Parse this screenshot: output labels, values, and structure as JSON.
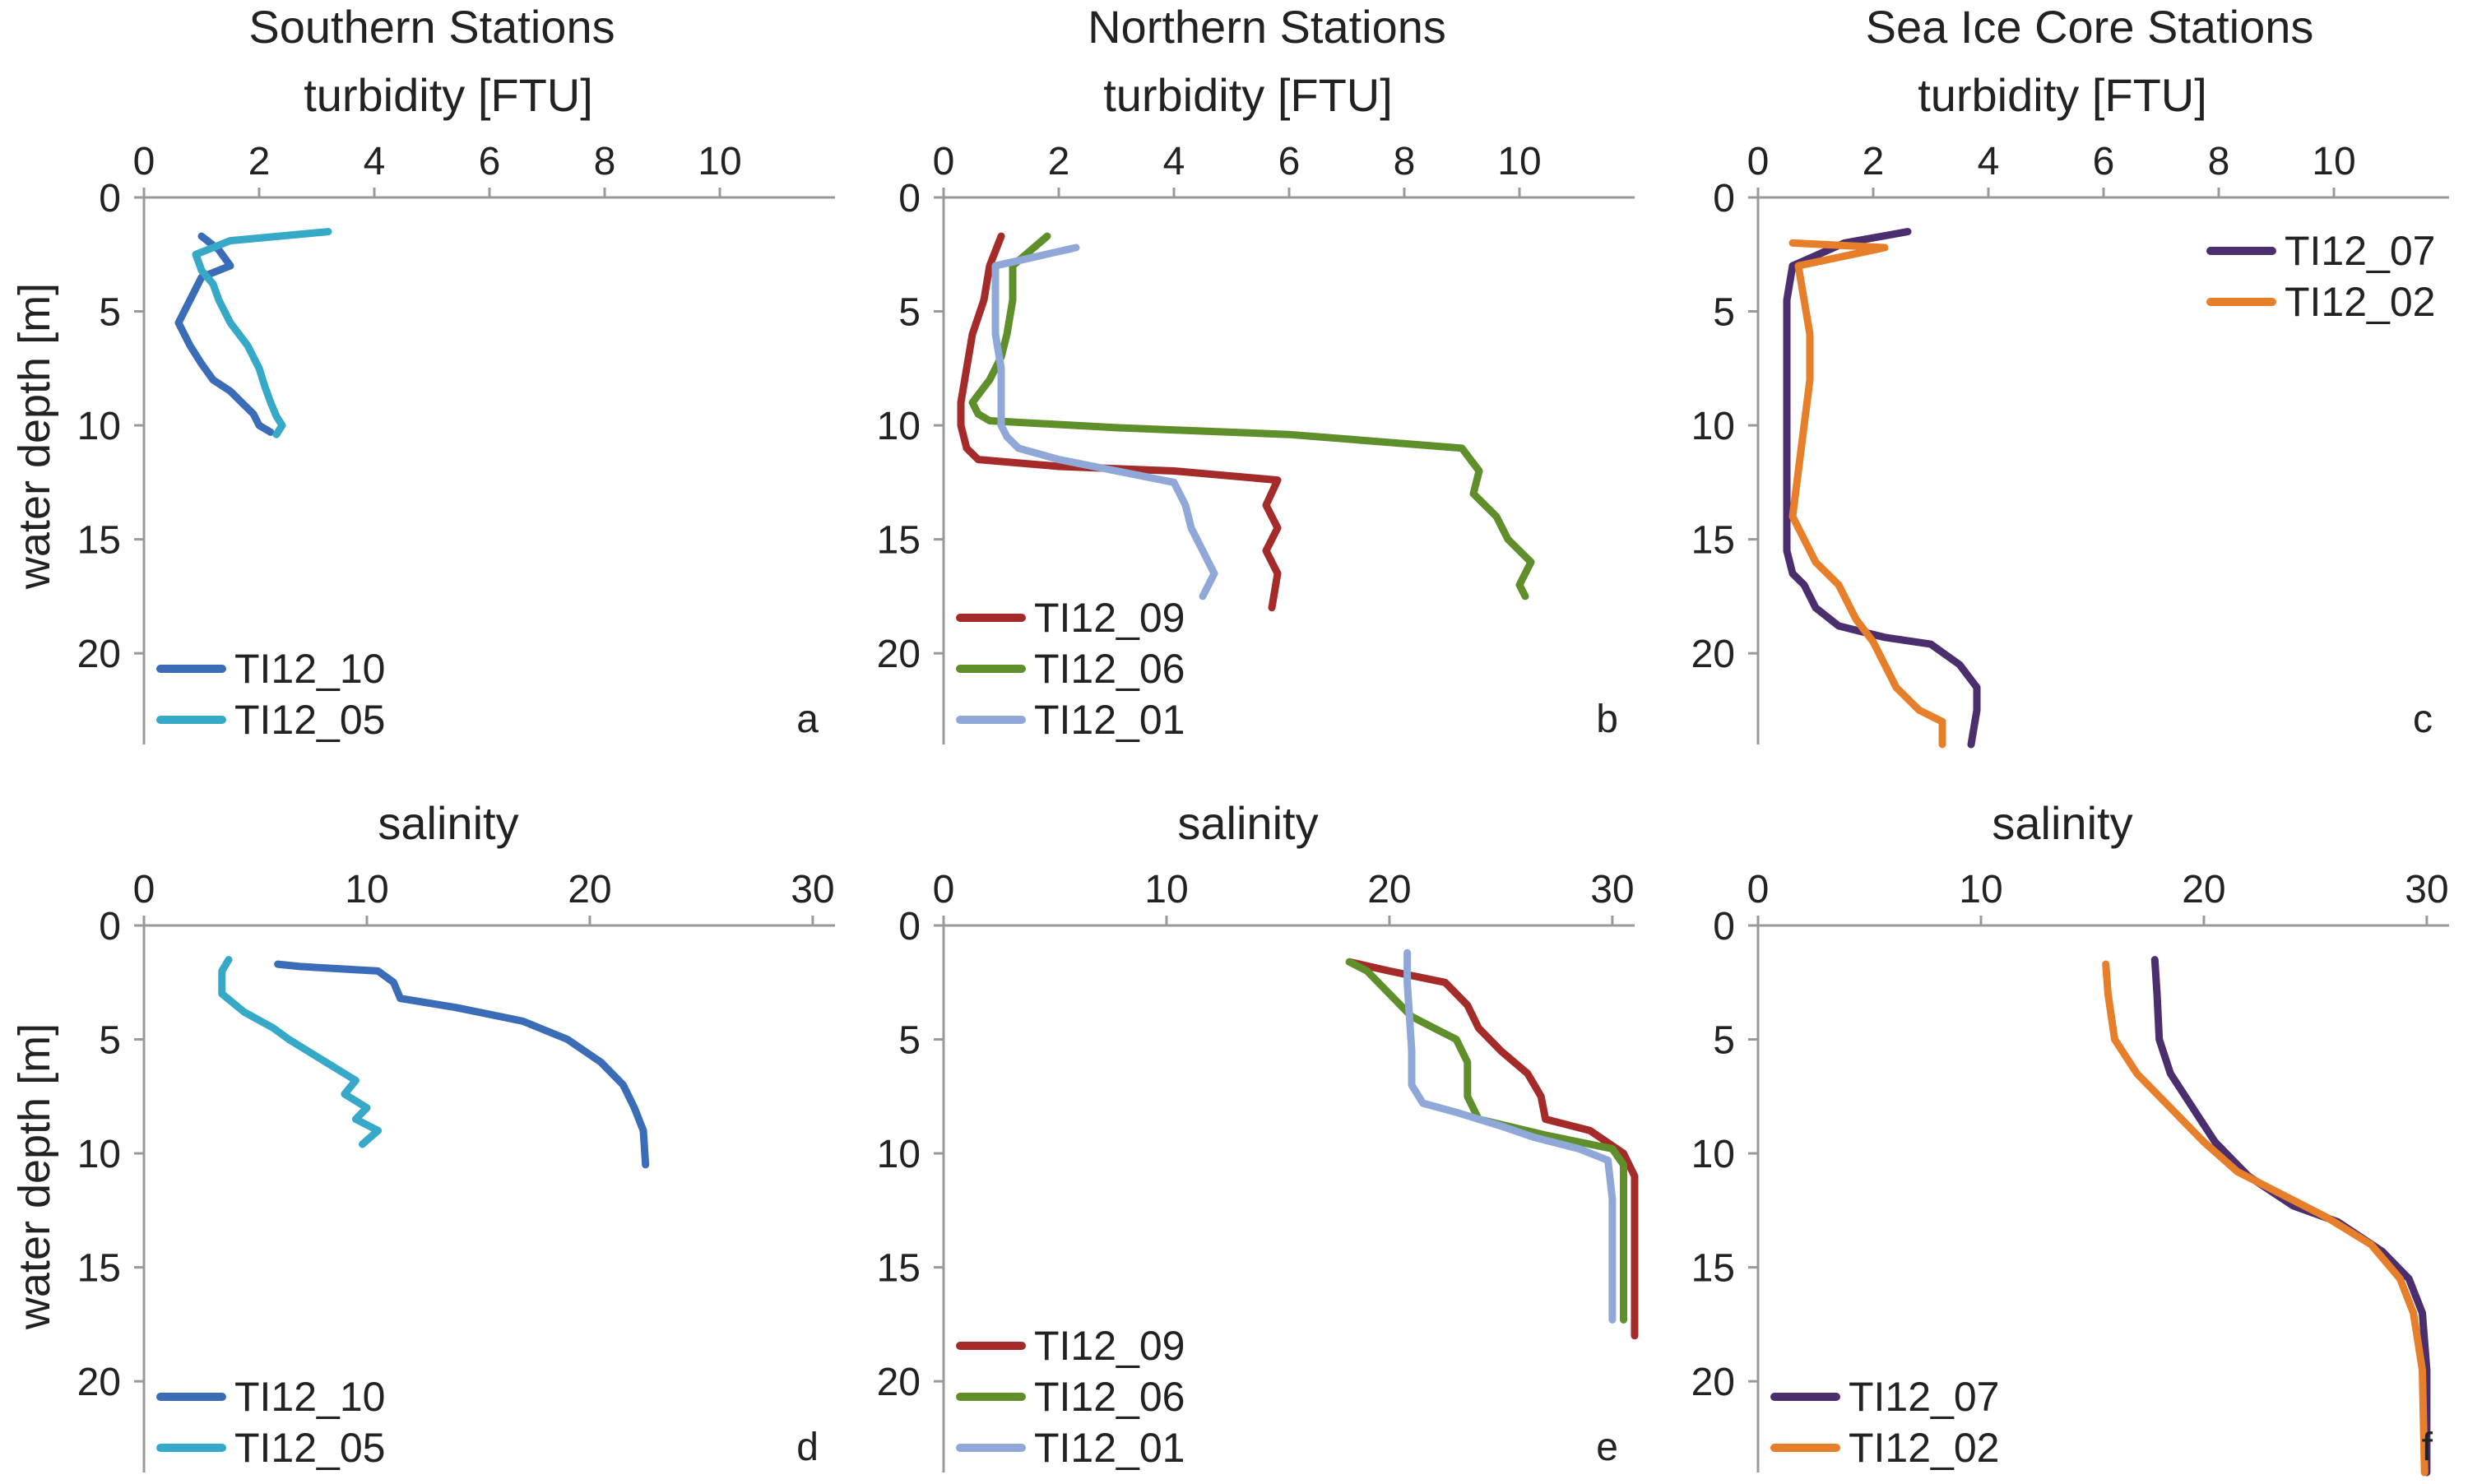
{
  "columns": [
    {
      "title": "Southern Stations"
    },
    {
      "title": "Northern Stations"
    },
    {
      "title": "Sea Ice Core Stations"
    }
  ],
  "colors": {
    "TI12_10": "#3b6cb8",
    "TI12_05": "#36a9c9",
    "TI12_09": "#a52a2a",
    "TI12_06": "#5f8f2a",
    "TI12_01": "#8fa8d8",
    "TI12_07": "#4b2e6e",
    "TI12_02": "#e77e2a"
  },
  "chart_data": [
    {
      "id": "a",
      "type": "line",
      "panel_label": "a",
      "xlabel": "turbidity [FTU]",
      "ylabel": "water depth [m]",
      "xlim": [
        0,
        12
      ],
      "ylim": [
        0,
        24
      ],
      "xticks": [
        0,
        2,
        4,
        6,
        8,
        10
      ],
      "yticks": [
        0,
        5,
        10,
        15,
        20
      ],
      "legend_position": "bottom-left",
      "series": [
        {
          "name": "TI12_10",
          "x": [
            1.0,
            1.3,
            1.5,
            1.0,
            0.8,
            0.6,
            0.8,
            1.0,
            1.2,
            1.5,
            1.7,
            1.9,
            2.0,
            2.2
          ],
          "y": [
            1.7,
            2.3,
            3.0,
            3.5,
            4.5,
            5.5,
            6.5,
            7.3,
            8.0,
            8.5,
            9.0,
            9.5,
            10.0,
            10.3
          ]
        },
        {
          "name": "TI12_05",
          "x": [
            3.2,
            1.5,
            0.9,
            1.0,
            1.2,
            1.3,
            1.5,
            1.8,
            2.0,
            2.1,
            2.2,
            2.3,
            2.4,
            2.3
          ],
          "y": [
            1.5,
            1.9,
            2.5,
            3.2,
            3.8,
            4.5,
            5.5,
            6.5,
            7.5,
            8.3,
            9.0,
            9.6,
            10.0,
            10.4
          ]
        }
      ]
    },
    {
      "id": "b",
      "type": "line",
      "panel_label": "b",
      "xlabel": "turbidity [FTU]",
      "ylabel": "",
      "xlim": [
        0,
        12
      ],
      "ylim": [
        0,
        24
      ],
      "xticks": [
        0,
        2,
        4,
        6,
        8,
        10
      ],
      "yticks": [
        0,
        5,
        10,
        15,
        20
      ],
      "legend_position": "bottom-left",
      "series": [
        {
          "name": "TI12_09",
          "x": [
            1.0,
            0.8,
            0.7,
            0.5,
            0.4,
            0.3,
            0.3,
            0.4,
            0.6,
            2.0,
            4.0,
            5.8,
            5.6,
            5.8,
            5.6,
            5.8,
            5.7
          ],
          "y": [
            1.7,
            3.0,
            4.5,
            6.0,
            7.5,
            9.0,
            10.0,
            11.0,
            11.5,
            11.8,
            12.0,
            12.4,
            13.5,
            14.5,
            15.5,
            16.5,
            18.0
          ]
        },
        {
          "name": "TI12_06",
          "x": [
            1.8,
            1.2,
            1.2,
            1.1,
            1.0,
            0.8,
            0.5,
            0.6,
            0.8,
            3.0,
            6.0,
            9.0,
            9.3,
            9.2,
            9.6,
            9.8,
            10.2,
            10.0,
            10.1
          ],
          "y": [
            1.7,
            3.0,
            4.5,
            6.0,
            7.0,
            8.0,
            9.0,
            9.5,
            9.8,
            10.1,
            10.4,
            11.0,
            12.0,
            13.0,
            14.0,
            15.0,
            16.0,
            17.0,
            17.5
          ]
        },
        {
          "name": "TI12_01",
          "x": [
            2.3,
            0.9,
            0.9,
            0.9,
            1.0,
            1.0,
            1.0,
            1.1,
            1.3,
            2.0,
            3.0,
            4.0,
            4.2,
            4.3,
            4.5,
            4.7,
            4.5
          ],
          "y": [
            2.2,
            3.0,
            4.5,
            6.0,
            7.5,
            9.0,
            10.0,
            10.5,
            11.0,
            11.5,
            12.0,
            12.5,
            13.5,
            14.5,
            15.5,
            16.5,
            17.5
          ]
        }
      ]
    },
    {
      "id": "c",
      "type": "line",
      "panel_label": "c",
      "xlabel": "turbidity [FTU]",
      "ylabel": "",
      "xlim": [
        0,
        12
      ],
      "ylim": [
        0,
        24
      ],
      "xticks": [
        0,
        2,
        4,
        6,
        8,
        10
      ],
      "yticks": [
        0,
        5,
        10,
        15,
        20
      ],
      "legend_position": "top-right",
      "series": [
        {
          "name": "TI12_07",
          "x": [
            2.6,
            1.5,
            0.6,
            0.5,
            0.5,
            0.5,
            0.5,
            0.5,
            0.5,
            0.5,
            0.6,
            0.8,
            1.0,
            1.4,
            2.2,
            3.0,
            3.5,
            3.8,
            3.8,
            3.7
          ],
          "y": [
            1.5,
            2.0,
            3.0,
            4.5,
            6.0,
            8.0,
            10.0,
            12.0,
            14.0,
            15.5,
            16.5,
            17.0,
            18.0,
            18.8,
            19.3,
            19.6,
            20.5,
            21.5,
            22.5,
            24.0
          ]
        },
        {
          "name": "TI12_02",
          "x": [
            0.6,
            2.2,
            0.7,
            0.8,
            0.9,
            0.9,
            0.8,
            0.7,
            0.6,
            0.8,
            1.0,
            1.4,
            1.7,
            2.0,
            2.2,
            2.4,
            2.8,
            3.2,
            3.2
          ],
          "y": [
            2.0,
            2.2,
            3.0,
            4.5,
            6.0,
            8.0,
            10.0,
            12.0,
            14.0,
            15.0,
            16.0,
            17.0,
            18.5,
            19.5,
            20.5,
            21.5,
            22.5,
            23.0,
            24.0
          ]
        }
      ]
    },
    {
      "id": "d",
      "type": "line",
      "panel_label": "d",
      "xlabel": "salinity",
      "ylabel": "water depth [m]",
      "xlim": [
        0,
        31
      ],
      "ylim": [
        0,
        24
      ],
      "xticks": [
        0,
        10,
        20,
        30
      ],
      "yticks": [
        0,
        5,
        10,
        15,
        20
      ],
      "legend_position": "bottom-left",
      "series": [
        {
          "name": "TI12_10",
          "x": [
            6.0,
            7.0,
            10.5,
            11.2,
            11.5,
            14.0,
            17.0,
            19.0,
            20.5,
            21.5,
            22.0,
            22.4,
            22.5
          ],
          "y": [
            1.7,
            1.8,
            2.0,
            2.5,
            3.2,
            3.6,
            4.2,
            5.0,
            6.0,
            7.0,
            8.0,
            9.0,
            10.5
          ]
        },
        {
          "name": "TI12_05",
          "x": [
            3.8,
            3.5,
            3.5,
            4.5,
            5.8,
            6.5,
            7.5,
            8.5,
            9.5,
            9.0,
            10.0,
            9.5,
            10.5,
            9.8
          ],
          "y": [
            1.5,
            2.0,
            3.0,
            3.8,
            4.5,
            5.0,
            5.6,
            6.2,
            6.8,
            7.4,
            8.0,
            8.5,
            9.0,
            9.6
          ]
        }
      ]
    },
    {
      "id": "e",
      "type": "line",
      "panel_label": "e",
      "xlabel": "salinity",
      "ylabel": "",
      "xlim": [
        0,
        31
      ],
      "ylim": [
        0,
        24
      ],
      "xticks": [
        0,
        10,
        20,
        30
      ],
      "yticks": [
        0,
        5,
        10,
        15,
        20
      ],
      "legend_position": "bottom-left",
      "series": [
        {
          "name": "TI12_09",
          "x": [
            18.2,
            20.0,
            22.5,
            23.5,
            24.0,
            25.0,
            26.2,
            26.8,
            27.0,
            29.0,
            30.5,
            31.0,
            31.0,
            31.0
          ],
          "y": [
            1.6,
            2.0,
            2.5,
            3.5,
            4.5,
            5.5,
            6.5,
            7.5,
            8.5,
            9.0,
            10.0,
            11.0,
            15.0,
            18.0
          ]
        },
        {
          "name": "TI12_06",
          "x": [
            18.2,
            19.0,
            20.0,
            21.0,
            22.0,
            23.0,
            23.5,
            23.5,
            24.0,
            27.0,
            30.0,
            30.5,
            30.5,
            30.5
          ],
          "y": [
            1.6,
            2.0,
            3.0,
            4.0,
            4.5,
            5.0,
            6.0,
            7.5,
            8.5,
            9.2,
            9.8,
            10.5,
            14.0,
            17.3
          ]
        },
        {
          "name": "TI12_01",
          "x": [
            20.8,
            20.8,
            20.9,
            21.0,
            21.0,
            21.5,
            23.0,
            25.0,
            26.5,
            28.5,
            29.8,
            30.0,
            30.0
          ],
          "y": [
            1.2,
            2.5,
            4.0,
            5.5,
            7.0,
            7.8,
            8.2,
            8.8,
            9.3,
            9.8,
            10.3,
            12.0,
            17.3
          ]
        }
      ]
    },
    {
      "id": "f",
      "type": "line",
      "panel_label": "f",
      "xlabel": "salinity",
      "ylabel": "",
      "xlim": [
        0,
        31
      ],
      "ylim": [
        0,
        24
      ],
      "xticks": [
        0,
        10,
        20,
        30
      ],
      "yticks": [
        0,
        5,
        10,
        15,
        20
      ],
      "legend_position": "bottom-left",
      "series": [
        {
          "name": "TI12_07",
          "x": [
            17.8,
            17.9,
            18.0,
            18.5,
            19.5,
            20.5,
            22.0,
            24.0,
            26.0,
            28.0,
            29.2,
            29.8,
            30.0,
            30.0
          ],
          "y": [
            1.5,
            3.0,
            5.0,
            6.5,
            8.0,
            9.5,
            11.0,
            12.3,
            13.0,
            14.3,
            15.5,
            17.0,
            19.5,
            24.0
          ]
        },
        {
          "name": "TI12_02",
          "x": [
            15.6,
            15.7,
            16.0,
            17.0,
            18.5,
            20.0,
            21.5,
            23.5,
            25.5,
            27.5,
            28.8,
            29.4,
            29.8,
            29.9
          ],
          "y": [
            1.7,
            3.0,
            5.0,
            6.5,
            8.0,
            9.5,
            10.8,
            11.8,
            12.8,
            14.0,
            15.5,
            17.0,
            19.5,
            24.0
          ]
        }
      ]
    }
  ]
}
